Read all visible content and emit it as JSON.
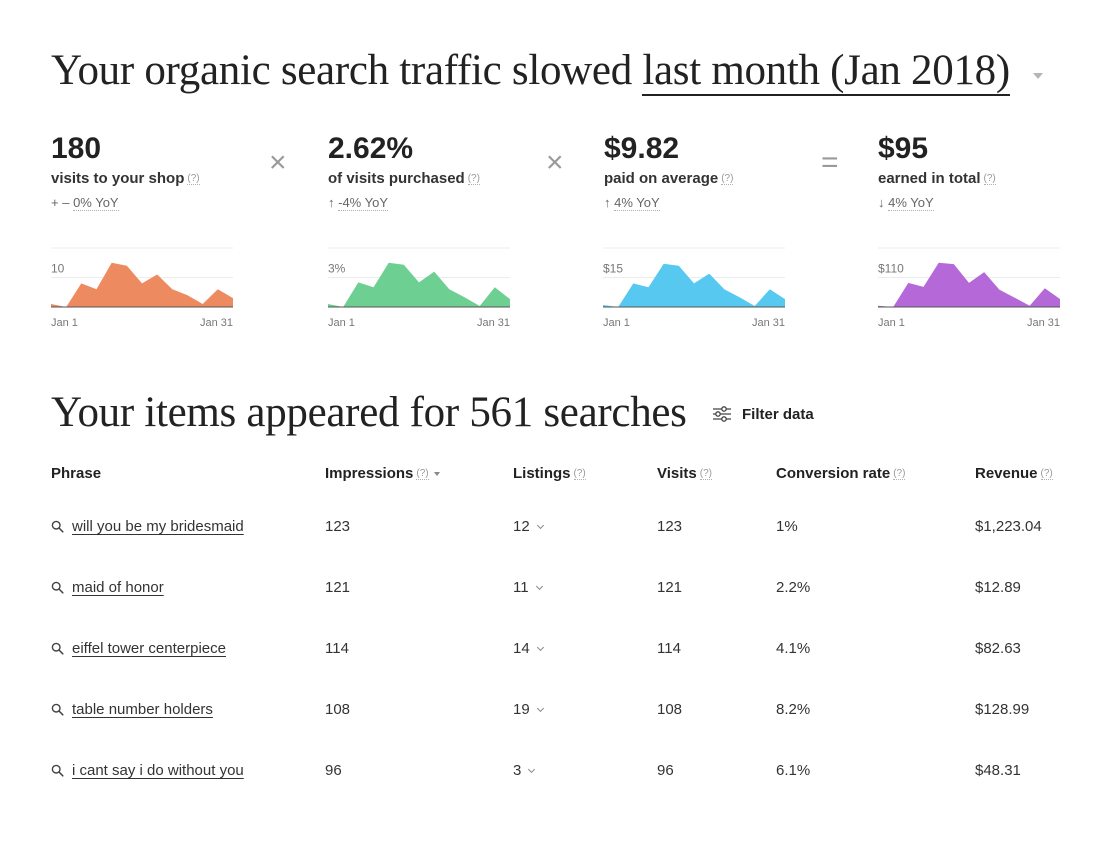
{
  "headline": {
    "prefix": "Your organic search traffic slowed ",
    "period": "last month (Jan 2018)"
  },
  "metrics": [
    {
      "value": "180",
      "label": "visits to your shop",
      "help": "(?)",
      "yoy_arrow": "+ –",
      "yoy": "0% YoY"
    },
    {
      "value": "2.62%",
      "label": "of visits purchased",
      "help": "(?)",
      "yoy_arrow": "↑",
      "yoy": "-4% YoY"
    },
    {
      "value": "$9.82",
      "label": "paid on average",
      "help": "(?)",
      "yoy_arrow": "↑",
      "yoy": "4% YoY"
    },
    {
      "value": "$95",
      "label": "earned in total",
      "help": "(?)",
      "yoy_arrow": "↓",
      "yoy": "4% YoY"
    }
  ],
  "operators": [
    "×",
    "×",
    "="
  ],
  "chart_data": [
    {
      "type": "area",
      "x_start_label": "Jan 1",
      "x_end_label": "Jan 31",
      "ytick_label": "10",
      "ylim": [
        0,
        20
      ],
      "gridlines": [
        10,
        20
      ],
      "color": "#ee8a5f",
      "values": [
        1,
        0,
        8,
        6,
        15,
        14,
        8,
        11,
        6,
        4,
        1,
        6,
        3
      ]
    },
    {
      "type": "area",
      "x_start_label": "Jan 1",
      "x_end_label": "Jan 31",
      "ytick_label": "3%",
      "ylim": [
        0,
        6
      ],
      "gridlines": [
        3,
        6
      ],
      "color": "#6dcf91",
      "values": [
        0.3,
        0,
        2.5,
        2,
        4.5,
        4.3,
        2.5,
        3.6,
        1.8,
        1,
        0.1,
        2,
        0.8
      ]
    },
    {
      "type": "area",
      "x_start_label": "Jan 1",
      "x_end_label": "Jan 31",
      "ytick_label": "$15",
      "ylim": [
        0,
        30
      ],
      "gridlines": [
        15,
        30
      ],
      "color": "#57c9f0",
      "values": [
        1,
        0,
        12,
        10,
        22,
        21,
        12,
        17,
        9,
        5,
        0.5,
        9,
        4
      ]
    },
    {
      "type": "area",
      "x_start_label": "Jan 1",
      "x_end_label": "Jan 31",
      "ytick_label": "$110",
      "ylim": [
        0,
        220
      ],
      "gridlines": [
        110,
        220
      ],
      "color": "#b569d8",
      "values": [
        5,
        0,
        90,
        75,
        165,
        160,
        90,
        130,
        65,
        35,
        5,
        70,
        30
      ]
    }
  ],
  "items": {
    "title": "Your items appeared for 561 searches",
    "filter_label": "Filter data",
    "columns": {
      "phrase": "Phrase",
      "impressions": "Impressions",
      "listings": "Listings",
      "visits": "Visits",
      "conversion": "Conversion rate",
      "revenue": "Revenue",
      "help": "(?)"
    },
    "rows": [
      {
        "phrase": "will you be my bridesmaid",
        "impressions": "123",
        "listings": "12",
        "visits": "123",
        "conversion": "1%",
        "revenue": "$1,223.04"
      },
      {
        "phrase": "maid of honor",
        "impressions": "121",
        "listings": "11",
        "visits": "121",
        "conversion": "2.2%",
        "revenue": "$12.89"
      },
      {
        "phrase": "eiffel tower centerpiece",
        "impressions": "114",
        "listings": "14",
        "visits": "114",
        "conversion": "4.1%",
        "revenue": "$82.63"
      },
      {
        "phrase": "table number holders",
        "impressions": "108",
        "listings": "19",
        "visits": "108",
        "conversion": "8.2%",
        "revenue": "$128.99"
      },
      {
        "phrase": "i cant say i do without you",
        "impressions": "96",
        "listings": "3",
        "visits": "96",
        "conversion": "6.1%",
        "revenue": "$48.31"
      }
    ]
  }
}
